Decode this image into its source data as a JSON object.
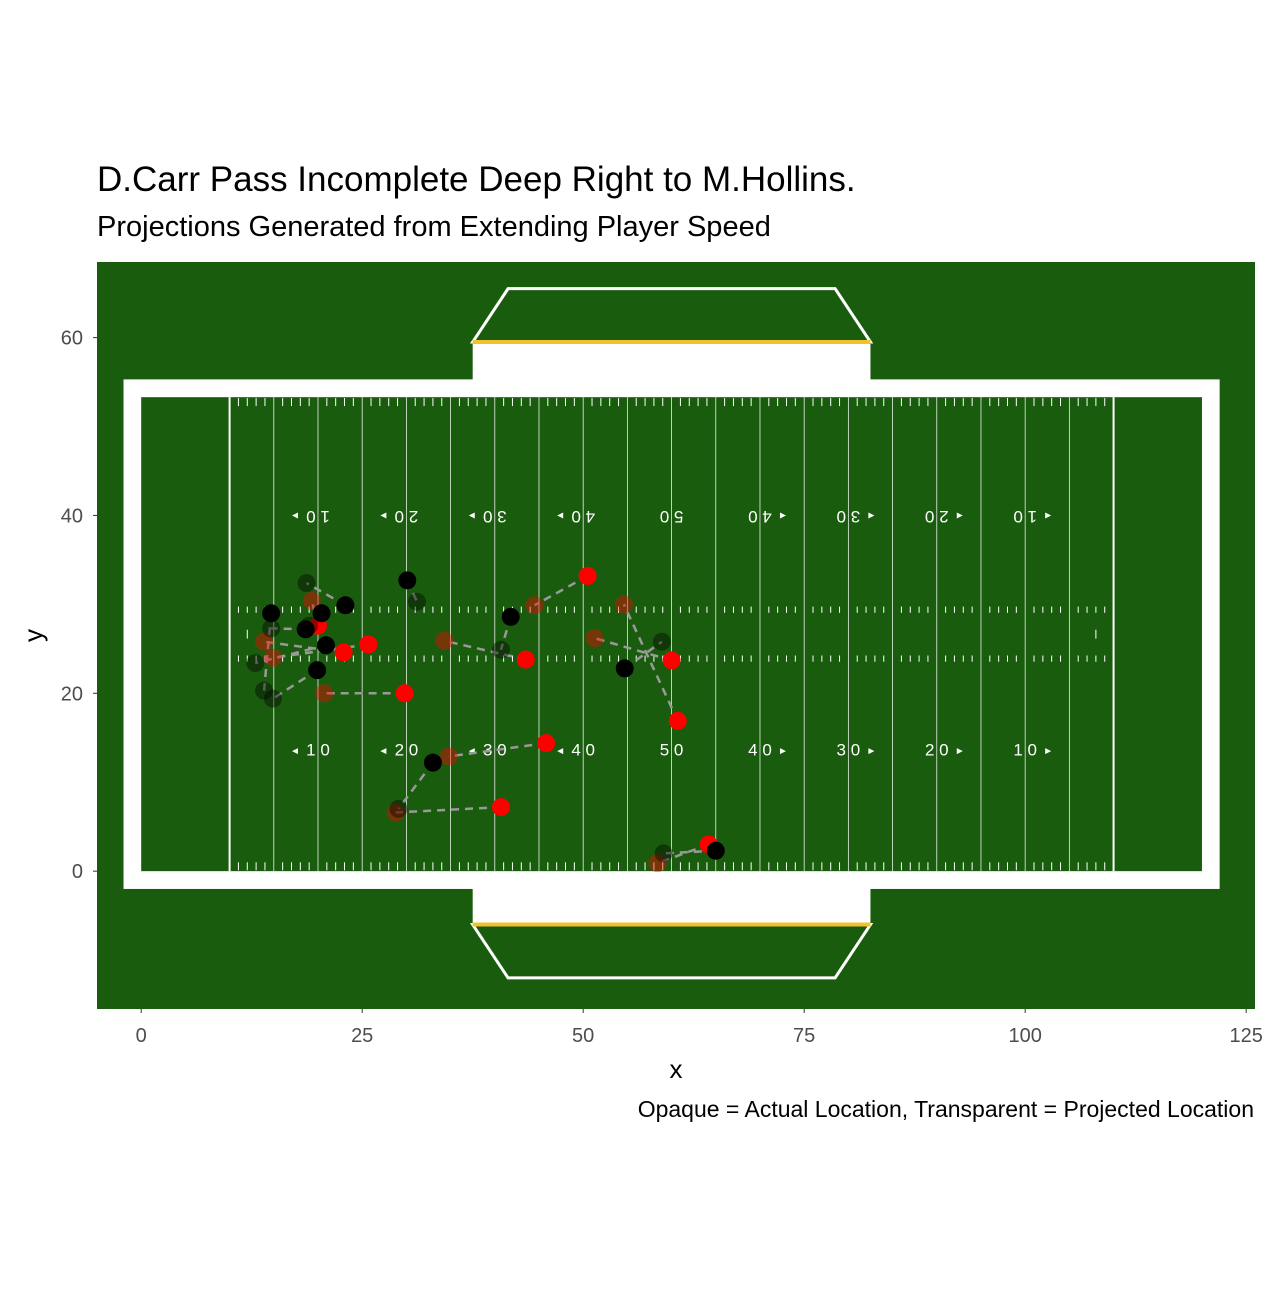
{
  "title": "D.Carr Pass Incomplete Deep Right to M.Hollins.",
  "subtitle": "Projections Generated from Extending Player Speed",
  "caption": "Opaque = Actual Location, Transparent = Projected Location",
  "colors": {
    "turf": "#1a5c0e",
    "lines": "#ffffff",
    "accent_stripe": "#f2c12e",
    "team_red": "#ff0000",
    "team_black": "#000000",
    "track_line": "#999999"
  },
  "chart_data": {
    "type": "scatter",
    "title": "D.Carr Pass Incomplete Deep Right to M.Hollins.",
    "subtitle": "Projections Generated from Extending Player Speed",
    "xlabel": "x",
    "ylabel": "y",
    "xlim": [
      -5,
      126
    ],
    "ylim": [
      -15.5,
      68.5
    ],
    "x_ticks": [
      0,
      25,
      50,
      75,
      100,
      125
    ],
    "y_ticks": [
      0,
      20,
      40,
      60
    ],
    "grid": false,
    "legend": "none",
    "field": {
      "length": 120,
      "width": 53.3,
      "yard_numbers_top": [
        "1 0",
        "2 0",
        "3 0",
        "4 0",
        "5 0",
        "4 0",
        "3 0",
        "2 0",
        "1 0"
      ],
      "yard_numbers_bottom": [
        "1 0",
        "2 0",
        "3 0",
        "4 0",
        "5 0",
        "4 0",
        "3 0",
        "2 0",
        "1 0"
      ],
      "yard_number_x": [
        20,
        30,
        40,
        50,
        60,
        70,
        80,
        90,
        100
      ],
      "yard_number_y_top": 40,
      "yard_number_y_bottom": 13.5
    },
    "series": [
      {
        "team": "red",
        "actual": [
          [
            50.5,
            33.2
          ],
          [
            29.8,
            20.0
          ],
          [
            25.7,
            25.5
          ],
          [
            22.9,
            24.6
          ],
          [
            43.5,
            23.8
          ],
          [
            45.8,
            14.4
          ],
          [
            40.7,
            7.2
          ],
          [
            60.0,
            23.7
          ],
          [
            60.7,
            16.9
          ],
          [
            64.2,
            3.0
          ],
          [
            20.0,
            27.6
          ]
        ],
        "projected": [
          [
            44.5,
            29.9
          ],
          [
            20.7,
            20.0
          ],
          [
            14.9,
            24.0
          ],
          [
            13.9,
            25.8
          ],
          [
            34.3,
            25.9
          ],
          [
            34.8,
            12.9
          ],
          [
            28.8,
            6.6
          ],
          [
            51.3,
            26.2
          ],
          [
            54.6,
            30.0
          ],
          [
            58.4,
            0.9
          ],
          [
            19.3,
            30.4
          ]
        ]
      },
      {
        "team": "black",
        "actual": [
          [
            30.1,
            32.7
          ],
          [
            23.1,
            29.9
          ],
          [
            20.4,
            29.0
          ],
          [
            18.6,
            27.2
          ],
          [
            20.9,
            25.4
          ],
          [
            19.9,
            22.6
          ],
          [
            14.7,
            29.0
          ],
          [
            41.8,
            28.6
          ],
          [
            54.7,
            22.8
          ],
          [
            33.0,
            12.2
          ],
          [
            65.0,
            2.3
          ]
        ],
        "projected": [
          [
            31.2,
            30.3
          ],
          [
            18.7,
            32.4
          ],
          [
            19.0,
            27.6
          ],
          [
            14.7,
            27.3
          ],
          [
            12.9,
            23.4
          ],
          [
            14.9,
            19.4
          ],
          [
            13.9,
            20.3
          ],
          [
            40.7,
            24.9
          ],
          [
            58.9,
            25.8
          ],
          [
            29.1,
            7.0
          ],
          [
            59.1,
            2.0
          ]
        ]
      }
    ]
  }
}
